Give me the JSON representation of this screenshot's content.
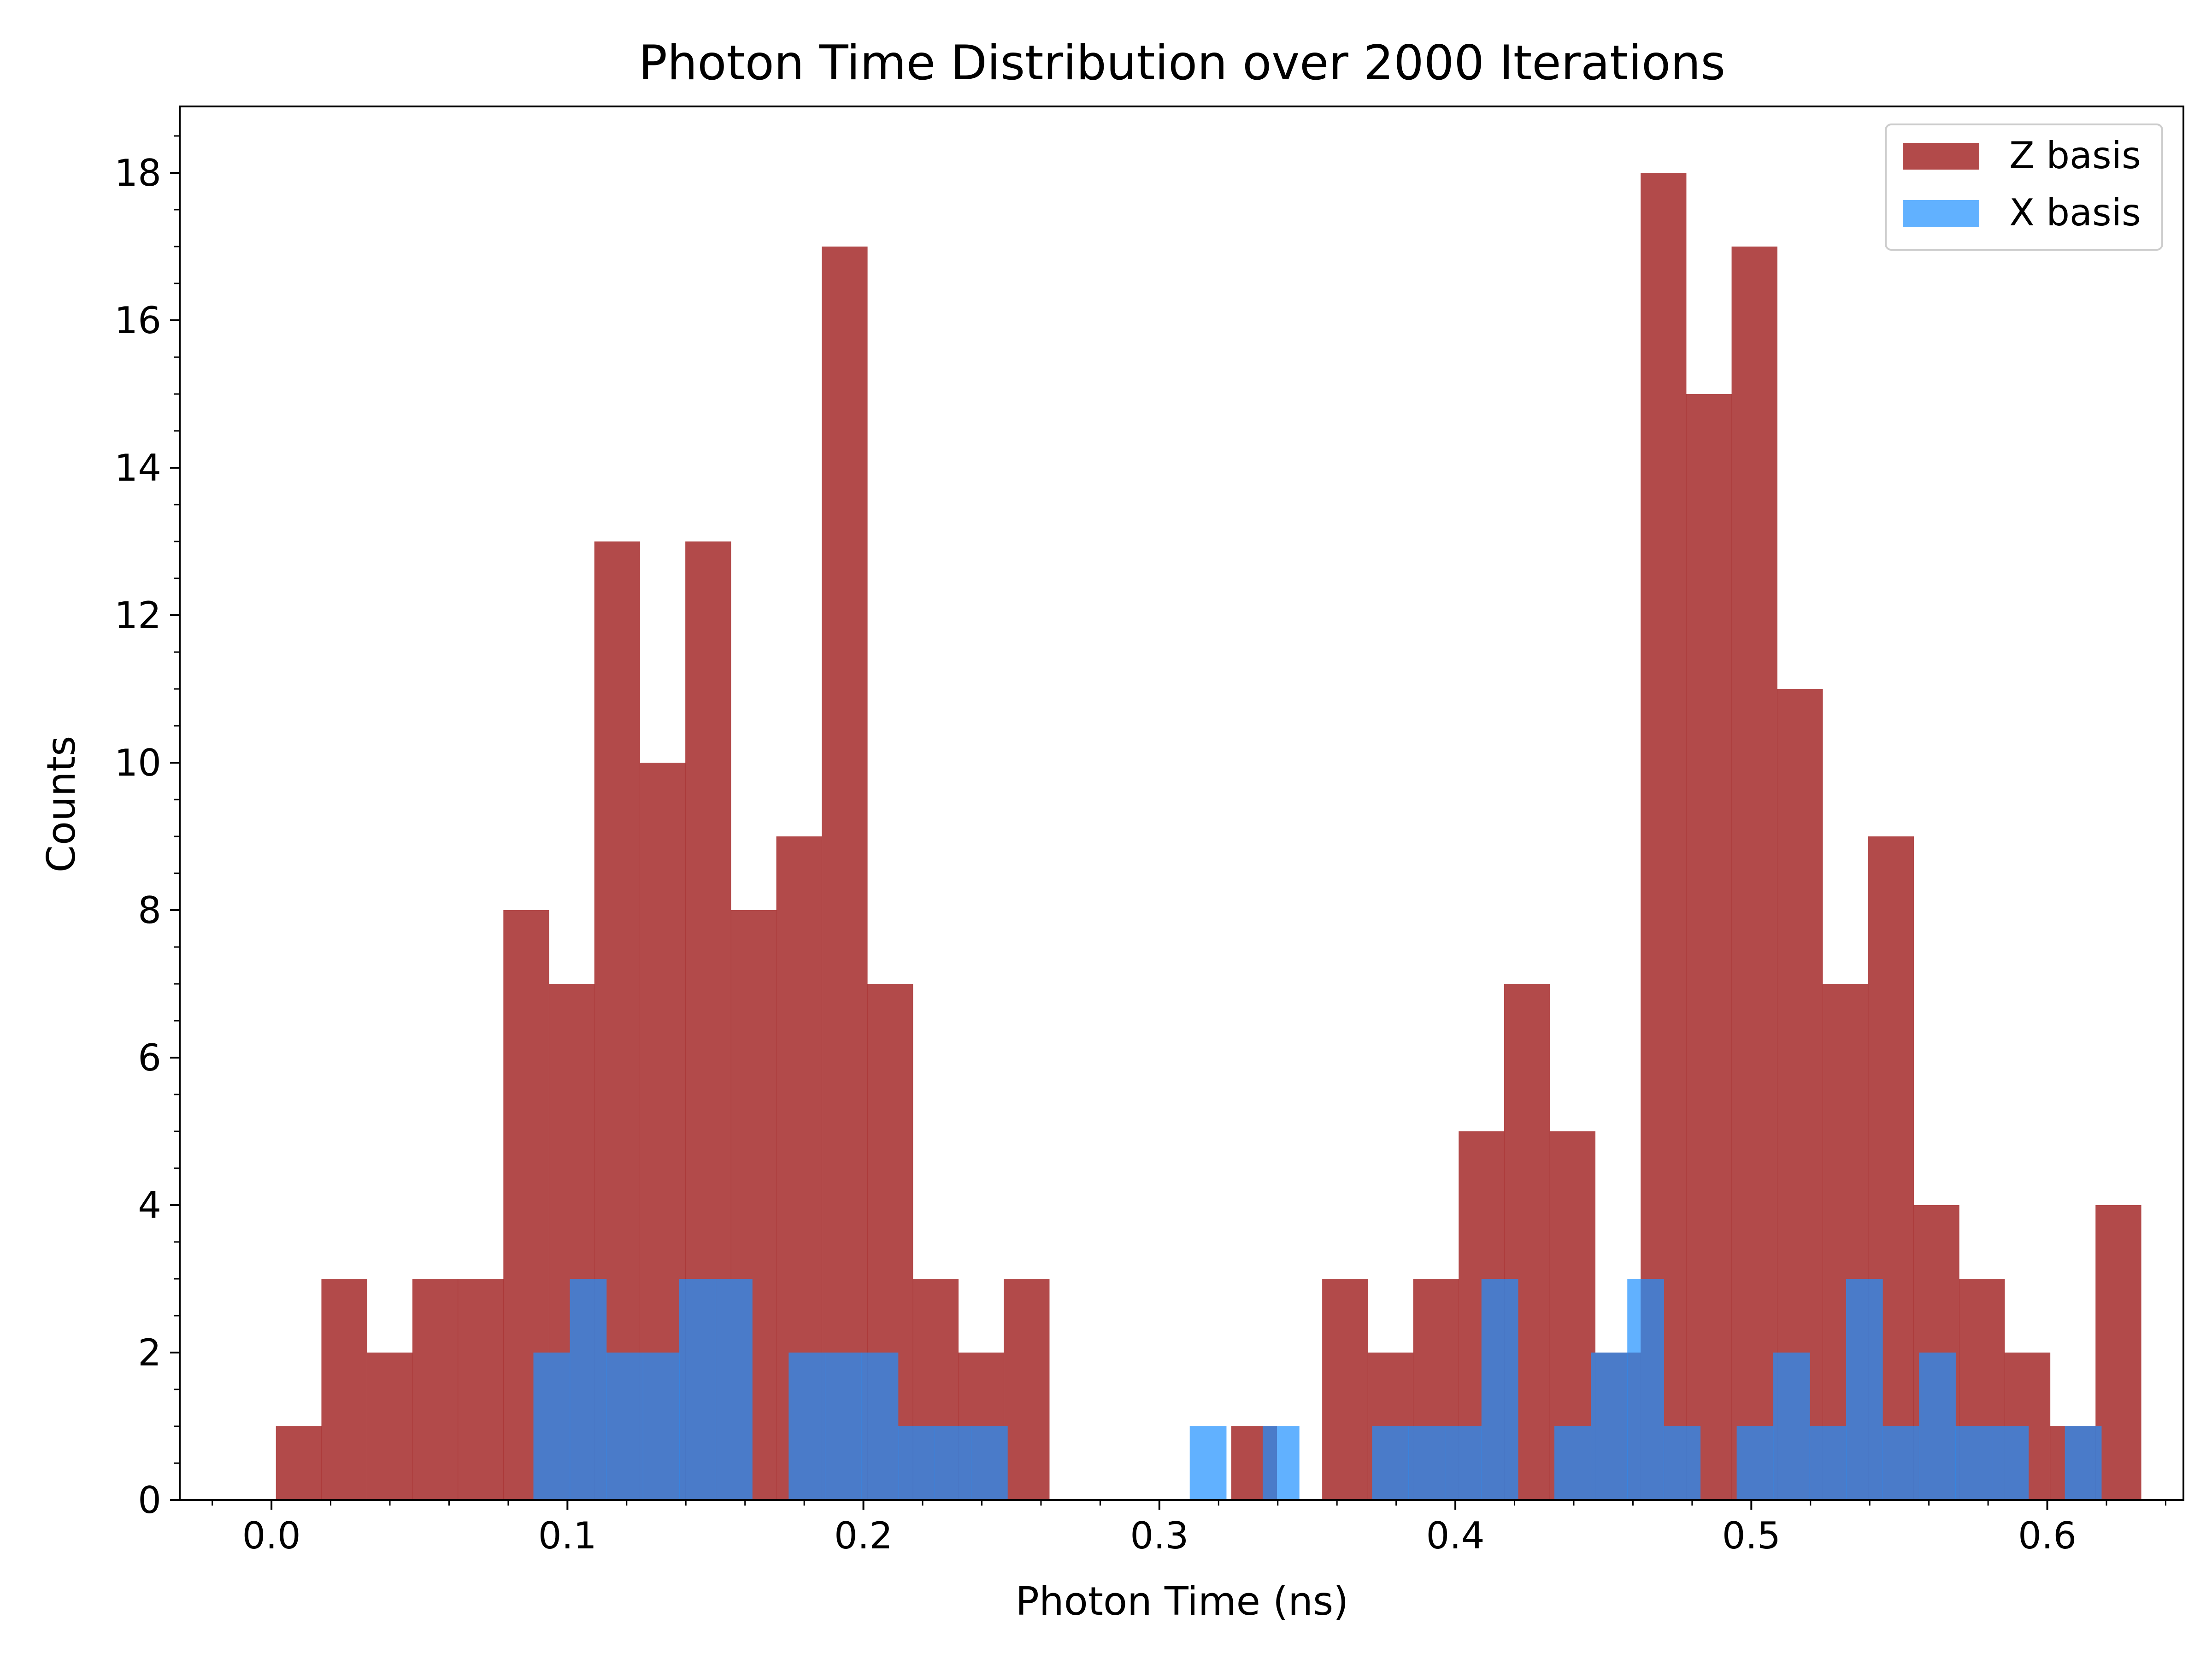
{
  "chart_data": {
    "type": "histogram",
    "title": "Photon Time Distribution over 2000 Iterations",
    "xlabel": "Photon Time (ns)",
    "ylabel": "Counts",
    "xlim": [
      -0.031,
      0.646
    ],
    "ylim": [
      0,
      18.9
    ],
    "xticks": [
      "0.0",
      "0.1",
      "0.2",
      "0.3",
      "0.4",
      "0.5",
      "0.6"
    ],
    "yticks": [
      "0",
      "2",
      "4",
      "6",
      "8",
      "10",
      "12",
      "14",
      "16",
      "18"
    ],
    "grid": false,
    "legend_position": "top-right",
    "series": [
      {
        "name": "Z basis",
        "color": "#a52a2a",
        "alpha": 0.85,
        "bin_start": 0.0015,
        "bin_width": 0.01537,
        "counts": [
          1,
          3,
          2,
          3,
          3,
          8,
          7,
          13,
          10,
          13,
          8,
          9,
          17,
          7,
          3,
          2,
          3,
          0,
          0,
          0,
          0,
          1,
          0,
          3,
          2,
          3,
          5,
          7,
          5,
          2,
          18,
          15,
          17,
          11,
          7,
          9,
          4,
          3,
          2,
          1,
          4
        ]
      },
      {
        "name": "X basis",
        "color": "#1e90ff",
        "alpha": 0.7,
        "bin_start": 0.0885,
        "bin_width": 0.01232,
        "counts": [
          2,
          3,
          2,
          2,
          3,
          3,
          0,
          2,
          2,
          2,
          1,
          1,
          1,
          0,
          0,
          0,
          0,
          0,
          1,
          0,
          1,
          0,
          0,
          1,
          1,
          1,
          3,
          0,
          1,
          2,
          3,
          1,
          0,
          1,
          2,
          1,
          3,
          1,
          2,
          1,
          1,
          0,
          1
        ]
      }
    ]
  }
}
